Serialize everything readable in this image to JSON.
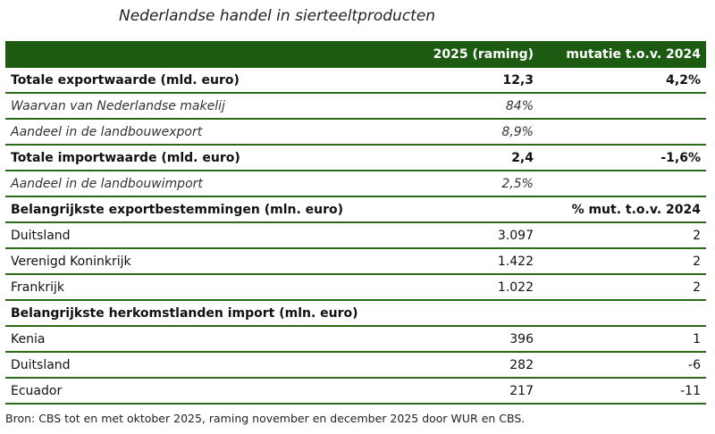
{
  "title": "Nederlandse handel in sierteeltproducten",
  "header": {
    "col1": "2025 (raming)",
    "col2": "mutatie t.o.v. 2024"
  },
  "rows": [
    {
      "label": "Totale exportwaarde (mld. euro)",
      "value": "12,3",
      "change": "4,2%",
      "style": "bold"
    },
    {
      "label": "Waarvan van Nederlandse makelij",
      "value": "84%",
      "change": "",
      "style": "ital"
    },
    {
      "label": "Aandeel in de landbouwexport",
      "value": "8,9%",
      "change": "",
      "style": "ital"
    },
    {
      "label": "Totale importwaarde (mld. euro)",
      "value": "2,4",
      "change": "-1,6%",
      "style": "bold"
    },
    {
      "label": "Aandeel in de landbouwimport",
      "value": "2,5%",
      "change": "",
      "style": "ital"
    },
    {
      "label": "Belangrijkste exportbestemmingen (mln. euro)",
      "value": "",
      "change": "% mut. t.o.v. 2024",
      "style": "bold"
    },
    {
      "label": "Duitsland",
      "value": "3.097",
      "change": "2",
      "style": ""
    },
    {
      "label": "Verenigd Koninkrijk",
      "value": "1.422",
      "change": "2",
      "style": ""
    },
    {
      "label": "Frankrijk",
      "value": "1.022",
      "change": "2",
      "style": ""
    },
    {
      "label": "Belangrijkste herkomstlanden import (mln. euro)",
      "value": "",
      "change": "",
      "style": "bold"
    },
    {
      "label": "Kenia",
      "value": "396",
      "change": "1",
      "style": ""
    },
    {
      "label": "Duitsland",
      "value": "282",
      "change": "-6",
      "style": ""
    },
    {
      "label": "Ecuador",
      "value": "217",
      "change": "-11",
      "style": ""
    }
  ],
  "source": "Bron: CBS tot en met oktober 2025, raming november en december 2025 door WUR en CBS.",
  "colors": {
    "header_bg": "#1e5b12",
    "row_border": "#2a6a1a"
  }
}
